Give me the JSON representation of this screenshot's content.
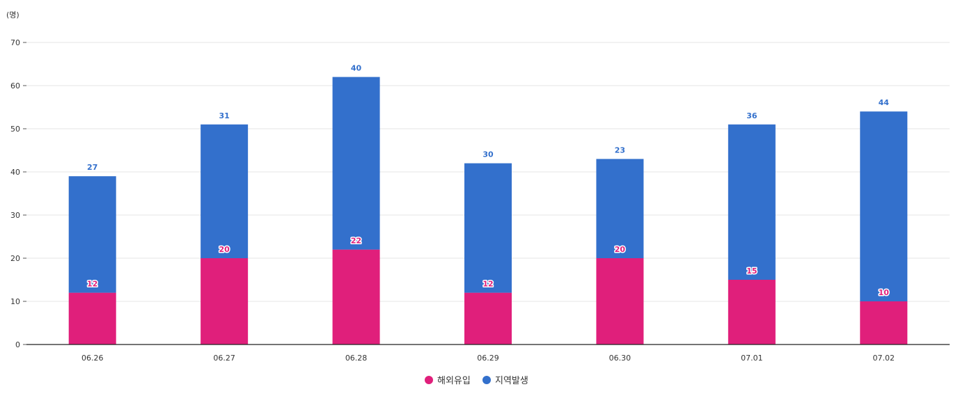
{
  "chart_data": {
    "type": "bar",
    "stacked": true,
    "title": "",
    "unit_label": "(명)",
    "categories": [
      "06.26",
      "06.27",
      "06.28",
      "06.29",
      "06.30",
      "07.01",
      "07.02"
    ],
    "series": [
      {
        "name": "해외유입",
        "color": "#e01f7b",
        "values": [
          12,
          20,
          22,
          12,
          20,
          15,
          10
        ]
      },
      {
        "name": "지역발생",
        "color": "#3370cc",
        "values": [
          27,
          31,
          40,
          30,
          23,
          36,
          44
        ]
      }
    ],
    "ylim": [
      0,
      70
    ],
    "yticks": [
      0,
      10,
      20,
      30,
      40,
      50,
      60,
      70
    ],
    "grid": true,
    "legend_position": "bottom-center"
  }
}
